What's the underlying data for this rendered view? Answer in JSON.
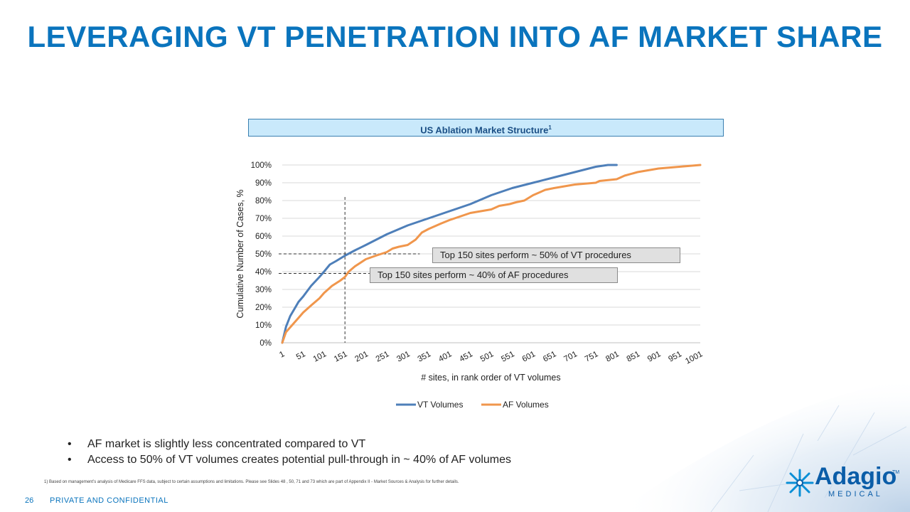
{
  "title": "LEVERAGING VT PENETRATION INTO AF MARKET SHARE",
  "chart_header": {
    "text": "US Ablation Market Structure",
    "sup": "1"
  },
  "chart_data": {
    "type": "line",
    "xlabel": "# sites, in rank order of VT volumes",
    "ylabel": "Cumulative Number of Cases, %",
    "x_ticks": [
      "1",
      "51",
      "101",
      "151",
      "201",
      "251",
      "301",
      "351",
      "401",
      "451",
      "501",
      "551",
      "601",
      "651",
      "701",
      "751",
      "801",
      "851",
      "901",
      "951",
      "1001"
    ],
    "y_ticks": [
      "0%",
      "10%",
      "20%",
      "30%",
      "40%",
      "50%",
      "60%",
      "70%",
      "80%",
      "90%",
      "100%"
    ],
    "xlim": [
      1,
      1001
    ],
    "ylim": [
      0,
      100
    ],
    "gridlines": "horizontal",
    "legend": "bottom",
    "series": [
      {
        "name": "VT Volumes",
        "color": "#4e7fb9",
        "points": [
          [
            1,
            0
          ],
          [
            10,
            9
          ],
          [
            20,
            15
          ],
          [
            30,
            19
          ],
          [
            40,
            23
          ],
          [
            51,
            26
          ],
          [
            70,
            32
          ],
          [
            90,
            37
          ],
          [
            101,
            40
          ],
          [
            115,
            44
          ],
          [
            130,
            46
          ],
          [
            151,
            49
          ],
          [
            175,
            52
          ],
          [
            201,
            55
          ],
          [
            251,
            61
          ],
          [
            301,
            66
          ],
          [
            351,
            70
          ],
          [
            401,
            74
          ],
          [
            451,
            78
          ],
          [
            501,
            83
          ],
          [
            551,
            87
          ],
          [
            601,
            90
          ],
          [
            651,
            93
          ],
          [
            701,
            96
          ],
          [
            751,
            99
          ],
          [
            780,
            100
          ],
          [
            801,
            100
          ]
        ]
      },
      {
        "name": "AF Volumes",
        "color": "#f0964c",
        "points": [
          [
            1,
            0
          ],
          [
            10,
            6
          ],
          [
            25,
            10
          ],
          [
            40,
            14
          ],
          [
            51,
            17
          ],
          [
            70,
            21
          ],
          [
            90,
            25
          ],
          [
            101,
            28
          ],
          [
            120,
            32
          ],
          [
            140,
            35
          ],
          [
            151,
            37
          ],
          [
            160,
            40
          ],
          [
            175,
            43
          ],
          [
            201,
            47
          ],
          [
            225,
            49
          ],
          [
            251,
            51
          ],
          [
            265,
            53
          ],
          [
            280,
            54
          ],
          [
            301,
            55
          ],
          [
            320,
            58
          ],
          [
            335,
            62
          ],
          [
            351,
            64
          ],
          [
            380,
            67
          ],
          [
            401,
            69
          ],
          [
            451,
            73
          ],
          [
            501,
            75
          ],
          [
            520,
            77
          ],
          [
            545,
            78
          ],
          [
            560,
            79
          ],
          [
            580,
            80
          ],
          [
            601,
            83
          ],
          [
            630,
            86
          ],
          [
            651,
            87
          ],
          [
            701,
            89
          ],
          [
            751,
            90
          ],
          [
            760,
            91
          ],
          [
            801,
            92
          ],
          [
            820,
            94
          ],
          [
            851,
            96
          ],
          [
            901,
            98
          ],
          [
            951,
            99
          ],
          [
            1001,
            100
          ]
        ]
      }
    ],
    "reference_lines": [
      {
        "type": "vertical",
        "x": 151,
        "y_top": 82
      },
      {
        "type": "horizontal",
        "y": 50,
        "x_end": 330
      },
      {
        "type": "horizontal",
        "y": 39,
        "x_end": 210
      }
    ],
    "annotations": [
      "Top 150 sites perform ~ 50% of VT procedures",
      "Top 150 sites perform ~ 40% of AF procedures"
    ]
  },
  "bullets": [
    "AF market is slightly less concentrated compared to VT",
    "Access to 50% of VT volumes creates potential pull-through in ~ 40% of AF volumes"
  ],
  "footnote": "1)  Based on management’s analysis of Medicare FFS data, subject to certain assumptions and limitations. Please see Slides 48 , 50, 71 and 73 which are part of Appendix II - Market Sources & Analysis for further details.",
  "footer": {
    "page_number": "26",
    "confidentiality": "PRIVATE AND CONFIDENTIAL"
  },
  "logo": {
    "name": "Adagio",
    "tm": "TM",
    "sub": "MEDICAL"
  }
}
